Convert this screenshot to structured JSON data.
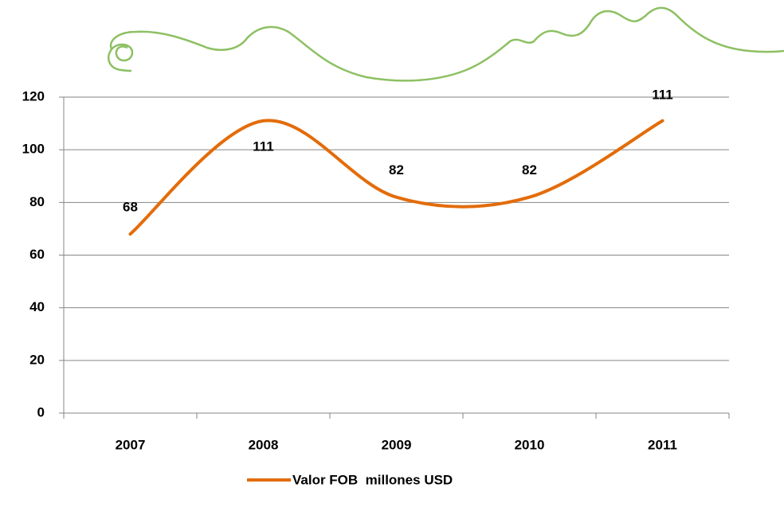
{
  "chart_data": {
    "type": "line",
    "categories": [
      "2007",
      "2008",
      "2009",
      "2010",
      "2011"
    ],
    "series": [
      {
        "name": "Valor FOB  millones USD",
        "color": "#e36c0a",
        "values": [
          68,
          111,
          82,
          82,
          111
        ]
      }
    ],
    "ylim": [
      0,
      120
    ],
    "yticks": [
      0,
      20,
      40,
      60,
      80,
      100,
      120
    ],
    "grid": true,
    "smooth": true,
    "legend": "bottom"
  }
}
